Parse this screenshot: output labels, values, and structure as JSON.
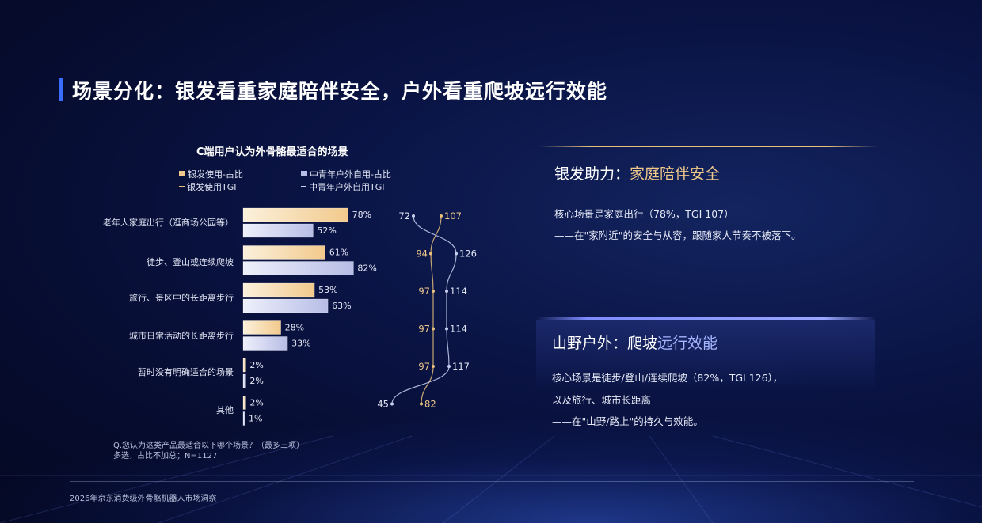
{
  "page_title": "场景分化：银发看重家庭陪伴安全，户外看重爬坡远行效能",
  "chart_data": {
    "type": "bar",
    "title": "C端用户认为外骨骼最适合的场景",
    "categories": [
      "老年人家庭出行（逛商场公园等）",
      "徒步、登山或连续爬坡",
      "旅行、景区中的长距离步行",
      "城市日常活动的长距离步行",
      "暂时没有明确适合的场景",
      "其他"
    ],
    "series": [
      {
        "name": "银发使用-占比",
        "type": "bar",
        "values": [
          78,
          61,
          53,
          28,
          2,
          2
        ],
        "labels": [
          "78%",
          "61%",
          "53%",
          "28%",
          "2%",
          "2%"
        ],
        "color": "#f2c98c"
      },
      {
        "name": "中青年户外自用-占比",
        "type": "bar",
        "values": [
          52,
          82,
          63,
          33,
          2,
          1
        ],
        "labels": [
          "52%",
          "82%",
          "63%",
          "33%",
          "2%",
          "1%"
        ],
        "color": "#b7bde6"
      },
      {
        "name": "银发使用TGI",
        "type": "line",
        "values": [
          107,
          94,
          97,
          97,
          97,
          82
        ],
        "color": "#e8c07a"
      },
      {
        "name": "中青年户外自用TGI",
        "type": "line",
        "values": [
          72,
          126,
          114,
          114,
          117,
          45
        ],
        "color": "#c9cff0"
      }
    ],
    "unit": "%",
    "legend_position": "top"
  },
  "legend": {
    "silver_share": "银发使用-占比",
    "young_share": "中青年户外自用-占比",
    "silver_tgi": "银发使用TGI",
    "young_tgi": "中青年户外自用TGI"
  },
  "note": {
    "line1": "Q.您认为这类产品最适合以下哪个场景？（最多三项）",
    "line2": "多选，占比不加总；N=1127"
  },
  "footer": "2026年京东消费级外骨骼机器人市场洞察",
  "panel_silver": {
    "head_white": "银发助力：",
    "head_accent": "家庭陪伴安全",
    "line1": "核心场景是家庭出行（78%，TGI 107）",
    "line2": "——在\"家附近\"的安全与从容，跟随家人节奏不被落下。"
  },
  "panel_outdoor": {
    "head_white": "山野户外：爬坡",
    "head_accent": "远行效能",
    "line1": "核心场景是徒步/登山/连续爬坡（82%，TGI 126），",
    "line2": "以及旅行、城市长距离",
    "line3": "——在\"山野/路上\"的持久与效能。"
  },
  "colors": {
    "silver_bar": "#f2c98c",
    "young_bar": "#b7bde6",
    "silver_line": "#e8c07a",
    "young_line": "#c9cff0",
    "accent_blue": "#3a6cff"
  }
}
